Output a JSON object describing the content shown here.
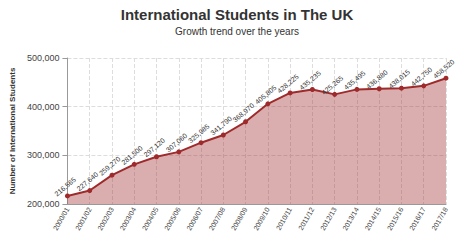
{
  "chart_data": {
    "type": "line",
    "title": "International Students in The UK",
    "subtitle": "Growth trend over the years",
    "y_label": "Number of International Students",
    "categories": [
      "2000/01",
      "2001/02",
      "2002/03",
      "2003/04",
      "2004/05",
      "2005/06",
      "2006/07",
      "2007/08",
      "2008/09",
      "2009/10",
      "2010/11",
      "2011/12",
      "2012/13",
      "2013/14",
      "2014/15",
      "2015/16",
      "2016/17",
      "2017/18"
    ],
    "values": [
      216565,
      227640,
      259270,
      281500,
      297120,
      307060,
      325985,
      341790,
      368970,
      405805,
      428225,
      435235,
      425265,
      435495,
      436880,
      438015,
      442750,
      458520
    ],
    "value_labels": [
      "216,565",
      "227,640",
      "259,270",
      "281,500",
      "297,120",
      "307,060",
      "325,985",
      "341,790",
      "368,970",
      "405,805",
      "428,225",
      "435,235",
      "425,265",
      "435,495",
      "436,880",
      "438,015",
      "442,750",
      "458,520"
    ],
    "color": "#9e2a2b",
    "ylim": [
      200000,
      500000
    ],
    "yticks": [
      {
        "value": 200000,
        "label": "200,000"
      },
      {
        "value": 300000,
        "label": "300,000"
      },
      {
        "value": 400000,
        "label": "400,000"
      },
      {
        "value": 500000,
        "label": "500,000"
      }
    ],
    "grid": true,
    "data_labels": true,
    "marker": "circle"
  }
}
